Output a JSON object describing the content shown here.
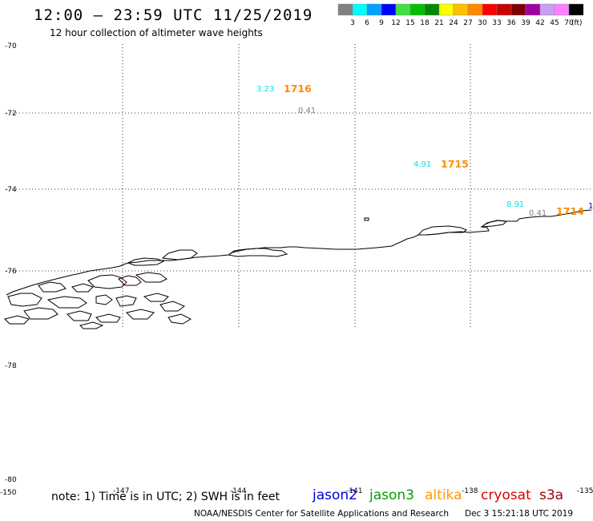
{
  "header": {
    "title": "12:00 – 23:59 UTC 11/25/2019",
    "subtitle": "12 hour collection of altimeter wave heights"
  },
  "legend": {
    "unit": "(ft)",
    "bins": [
      {
        "label": "3",
        "color": "#808080"
      },
      {
        "label": "6",
        "color": "#00ffff"
      },
      {
        "label": "9",
        "color": "#00a0ff"
      },
      {
        "label": "12",
        "color": "#0000ff"
      },
      {
        "label": "15",
        "color": "#40e040"
      },
      {
        "label": "18",
        "color": "#00c000"
      },
      {
        "label": "21",
        "color": "#008800"
      },
      {
        "label": "24",
        "color": "#ffff00"
      },
      {
        "label": "27",
        "color": "#ffc000"
      },
      {
        "label": "30",
        "color": "#ff8800"
      },
      {
        "label": "33",
        "color": "#ff0000"
      },
      {
        "label": "36",
        "color": "#c80000"
      },
      {
        "label": "39",
        "color": "#800000"
      },
      {
        "label": "42",
        "color": "#a000a0"
      },
      {
        "label": "45",
        "color": "#c8a0f0"
      },
      {
        "label": "70",
        "color": "#ff80ff"
      },
      {
        "label": "",
        "color": "#000000"
      }
    ]
  },
  "map": {
    "lat_ticks": [
      "-70",
      "-72",
      "-74",
      "-76",
      "-78",
      "-80"
    ],
    "lon_ticks": [
      "-150",
      "-147",
      "-144",
      "-141",
      "-138",
      "-135"
    ]
  },
  "observations": [
    {
      "swh": "3.23",
      "swh_color": "#00e5e5",
      "time": "1716",
      "time_color": "#ff8c00",
      "extra": "0.41"
    },
    {
      "swh": "4.91",
      "swh_color": "#00e5e5",
      "time": "1715",
      "time_color": "#ff8c00",
      "extra": ""
    },
    {
      "swh": "8.91",
      "swh_color": "#00e5e5",
      "time": "1714",
      "time_color": "#ff8c00",
      "extra": "0.41"
    }
  ],
  "footer": {
    "note": "note:  1) Time is in UTC;  2) SWH is in feet",
    "satellites": [
      {
        "name": "jason2",
        "color": "#0000dd"
      },
      {
        "name": "jason3",
        "color": "#00a000"
      },
      {
        "name": "altika",
        "color": "#ff9900"
      },
      {
        "name": "cryosat",
        "color": "#dd0000"
      },
      {
        "name": "s3a",
        "color": "#990000"
      }
    ],
    "credit": "NOAA/NESDIS Center for Satellite Applications and Research",
    "timestamp": "Dec  3 15:21:18 UTC 2019"
  }
}
